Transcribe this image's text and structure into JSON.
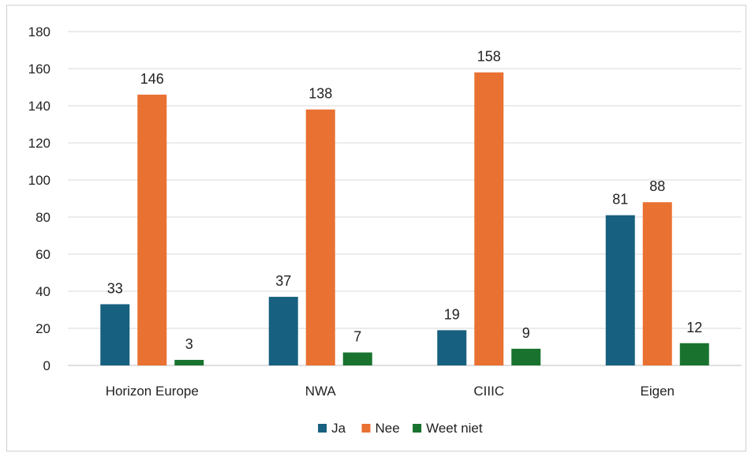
{
  "chart_data": {
    "type": "bar",
    "categories": [
      "Horizon Europe",
      "NWA",
      "CIIIC",
      "Eigen"
    ],
    "series": [
      {
        "name": "Ja",
        "values": [
          33,
          37,
          19,
          81
        ],
        "color": "#17607F"
      },
      {
        "name": "Nee",
        "values": [
          146,
          138,
          158,
          88
        ],
        "color": "#E97132"
      },
      {
        "name": "Weet niet",
        "values": [
          3,
          7,
          9,
          12
        ],
        "color": "#19732E"
      }
    ],
    "title": "",
    "xlabel": "",
    "ylabel": "",
    "ylim": [
      0,
      180
    ],
    "yticks": [
      0,
      20,
      40,
      60,
      80,
      100,
      120,
      140,
      160,
      180
    ],
    "grid": true,
    "legend_position": "bottom",
    "data_labels": true
  }
}
